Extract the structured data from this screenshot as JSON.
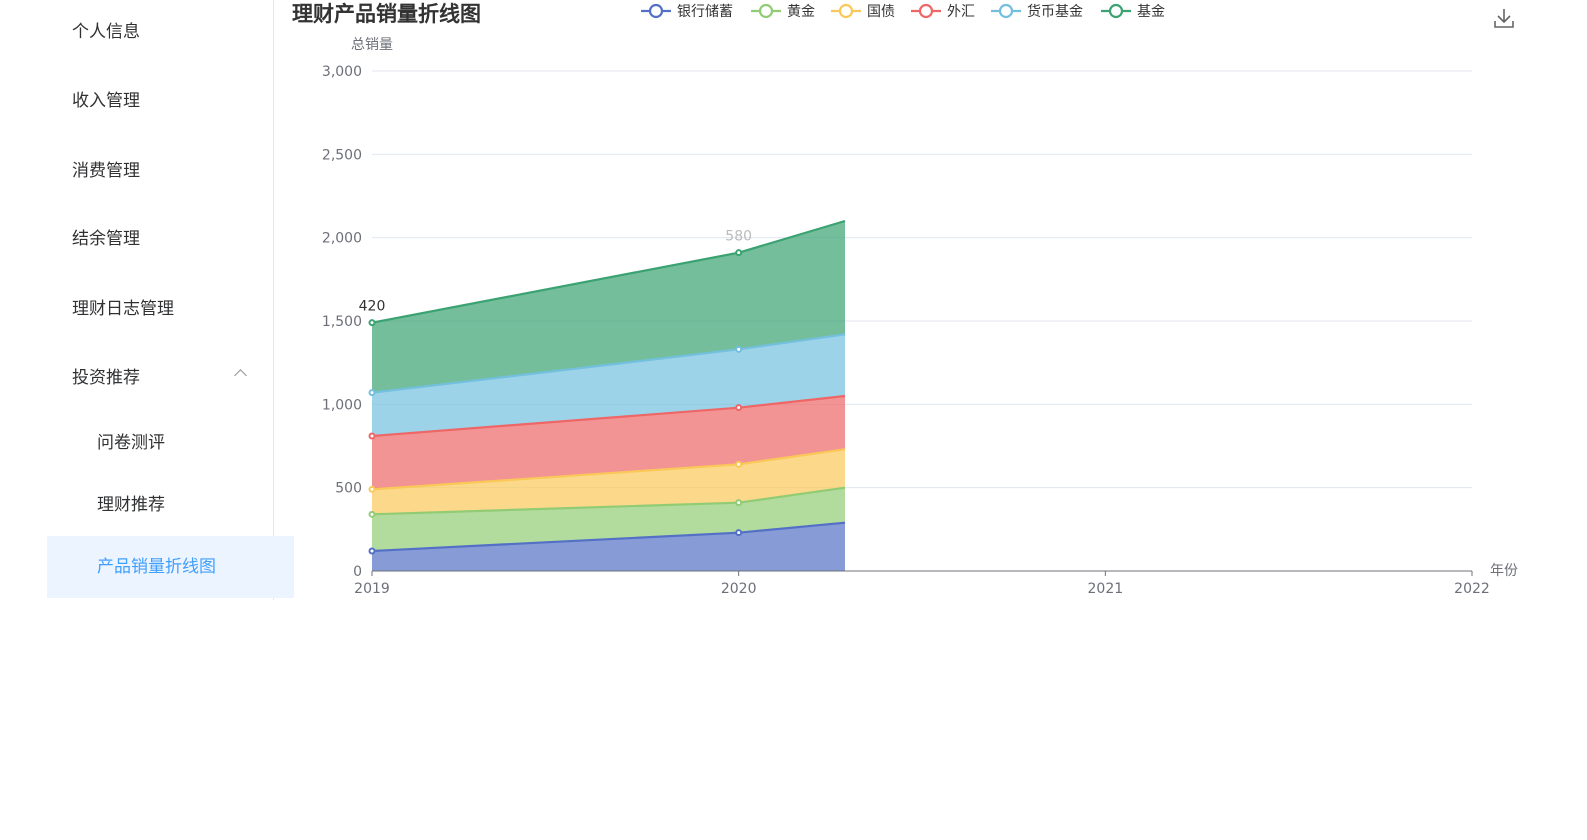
{
  "sidebar": {
    "items": [
      {
        "label": "个人信息"
      },
      {
        "label": "收入管理"
      },
      {
        "label": "消费管理"
      },
      {
        "label": "结余管理"
      },
      {
        "label": "理财日志管理"
      },
      {
        "label": "投资推荐"
      }
    ],
    "sub_items": [
      {
        "label": "问卷测评"
      },
      {
        "label": "理财推荐"
      },
      {
        "label": "产品销量折线图"
      }
    ],
    "active_color": "#409eff",
    "active_bg": "#ecf5ff"
  },
  "chart_data": {
    "type": "area",
    "stacked": true,
    "title": "理财产品销量折线图",
    "xlabel": "年份",
    "ylabel": "总销量",
    "ylim": [
      0,
      3000
    ],
    "yticks": [
      0,
      500,
      1000,
      1500,
      2000,
      2500,
      3000
    ],
    "ytick_labels": [
      "0",
      "500",
      "1,000",
      "1,500",
      "2,000",
      "2,500",
      "3,000"
    ],
    "xlim": [
      2019,
      2022
    ],
    "xticks": [
      "2019",
      "2020",
      "2021",
      "2022"
    ],
    "x": [
      2019,
      2020,
      2020.29
    ],
    "series": [
      {
        "name": "银行储蓄",
        "color": "#5470c6",
        "values": [
          120,
          230,
          290
        ]
      },
      {
        "name": "黄金",
        "color": "#91cc75",
        "values": [
          220,
          180,
          210
        ]
      },
      {
        "name": "国债",
        "color": "#fac858",
        "values": [
          150,
          230,
          230
        ]
      },
      {
        "name": "外汇",
        "color": "#ee6666",
        "values": [
          320,
          340,
          320
        ]
      },
      {
        "name": "货币基金",
        "color": "#73c0de",
        "values": [
          260,
          350,
          370
        ]
      },
      {
        "name": "基金",
        "color": "#3ba272",
        "values": [
          420,
          580,
          680
        ]
      }
    ],
    "point_labels": [
      {
        "series": 5,
        "point": 0,
        "text": "420",
        "color": "#333333"
      },
      {
        "series": 5,
        "point": 1,
        "text": "580",
        "color": "#bbbbbb"
      }
    ],
    "grid": true,
    "legend_position": "top"
  }
}
